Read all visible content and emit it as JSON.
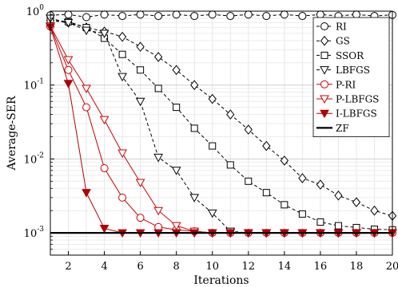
{
  "chart_data": {
    "type": "line",
    "title": "",
    "xlabel": "Iterations",
    "ylabel": "Average-SER",
    "x_scale": "linear",
    "y_scale": "log",
    "xlim": [
      1,
      20
    ],
    "ylim": [
      0.0005,
      1
    ],
    "x_ticks": [
      "2",
      "4",
      "6",
      "8",
      "10",
      "12",
      "14",
      "16",
      "18",
      "20"
    ],
    "y_ticks": [
      {
        "base": "10",
        "exp": "0"
      },
      {
        "base": "10",
        "exp": "-1"
      },
      {
        "base": "10",
        "exp": "-2"
      },
      {
        "base": "10",
        "exp": "-3"
      }
    ],
    "grid": true,
    "legend_position": "top-right",
    "x": [
      1,
      2,
      3,
      4,
      5,
      6,
      7,
      8,
      9,
      10,
      11,
      12,
      13,
      14,
      15,
      16,
      17,
      18,
      19,
      20
    ],
    "series": [
      {
        "name": "RI",
        "color": "#000000",
        "dash": "dashed",
        "marker": "circle",
        "filled": false,
        "values": [
          0.88,
          0.9,
          0.83,
          0.9,
          0.86,
          0.9,
          0.86,
          0.9,
          0.86,
          0.9,
          0.86,
          0.9,
          0.86,
          0.9,
          0.86,
          0.9,
          0.86,
          0.9,
          0.86,
          0.89
        ]
      },
      {
        "name": "GS",
        "color": "#000000",
        "dash": "dashed",
        "marker": "diamond",
        "filled": false,
        "values": [
          0.75,
          0.7,
          0.6,
          0.53,
          0.45,
          0.33,
          0.24,
          0.16,
          0.1,
          0.065,
          0.04,
          0.025,
          0.015,
          0.0095,
          0.0055,
          0.0045,
          0.0032,
          0.0026,
          0.002,
          0.0017
        ]
      },
      {
        "name": "SSOR",
        "color": "#000000",
        "dash": "dashed",
        "marker": "square",
        "filled": false,
        "values": [
          0.75,
          0.72,
          0.6,
          0.43,
          0.26,
          0.16,
          0.09,
          0.05,
          0.026,
          0.015,
          0.0083,
          0.005,
          0.0035,
          0.0024,
          0.0018,
          0.0014,
          0.00125,
          0.00118,
          0.00112,
          0.0011
        ]
      },
      {
        "name": "LBFGS",
        "color": "#000000",
        "dash": "dashed",
        "marker": "triangle-down",
        "filled": false,
        "values": [
          0.8,
          0.7,
          0.55,
          0.5,
          0.13,
          0.06,
          0.0105,
          0.007,
          0.003,
          0.00185,
          0.00105,
          0.001,
          0.001,
          0.001,
          0.001,
          0.001,
          0.001,
          0.001,
          0.001,
          0.001
        ]
      },
      {
        "name": "P-RI",
        "color": "#cc0000",
        "dash": "solid",
        "marker": "circle",
        "filled": false,
        "values": [
          0.62,
          0.16,
          0.05,
          0.0075,
          0.003,
          0.0016,
          0.0012,
          0.0011,
          0.00105,
          0.001,
          0.001,
          0.001,
          0.001,
          0.001,
          0.001,
          0.001,
          0.001,
          0.001,
          0.001,
          0.001
        ]
      },
      {
        "name": "P-LBFGS",
        "color": "#cc0000",
        "dash": "solid",
        "marker": "triangle-down",
        "filled": false,
        "values": [
          0.63,
          0.22,
          0.09,
          0.034,
          0.012,
          0.0048,
          0.002,
          0.00125,
          0.00105,
          0.001,
          0.001,
          0.001,
          0.001,
          0.001,
          0.001,
          0.001,
          0.001,
          0.001,
          0.001,
          0.001
        ]
      },
      {
        "name": "I-LBFGS",
        "color": "#b00000",
        "dash": "solid",
        "marker": "triangle-down",
        "filled": true,
        "values": [
          0.61,
          0.105,
          0.0035,
          0.00115,
          0.001,
          0.001,
          0.001,
          0.001,
          0.001,
          0.001,
          0.001,
          0.001,
          0.001,
          0.001,
          0.001,
          0.001,
          0.001,
          0.001,
          0.001,
          0.001
        ]
      },
      {
        "name": "ZF",
        "color": "#000000",
        "dash": "solid",
        "marker": "none",
        "filled": false,
        "line_weight": "thick",
        "values": [
          0.001,
          0.001,
          0.001,
          0.001,
          0.001,
          0.001,
          0.001,
          0.001,
          0.001,
          0.001,
          0.001,
          0.001,
          0.001,
          0.001,
          0.001,
          0.001,
          0.001,
          0.001,
          0.001,
          0.001
        ]
      }
    ]
  }
}
